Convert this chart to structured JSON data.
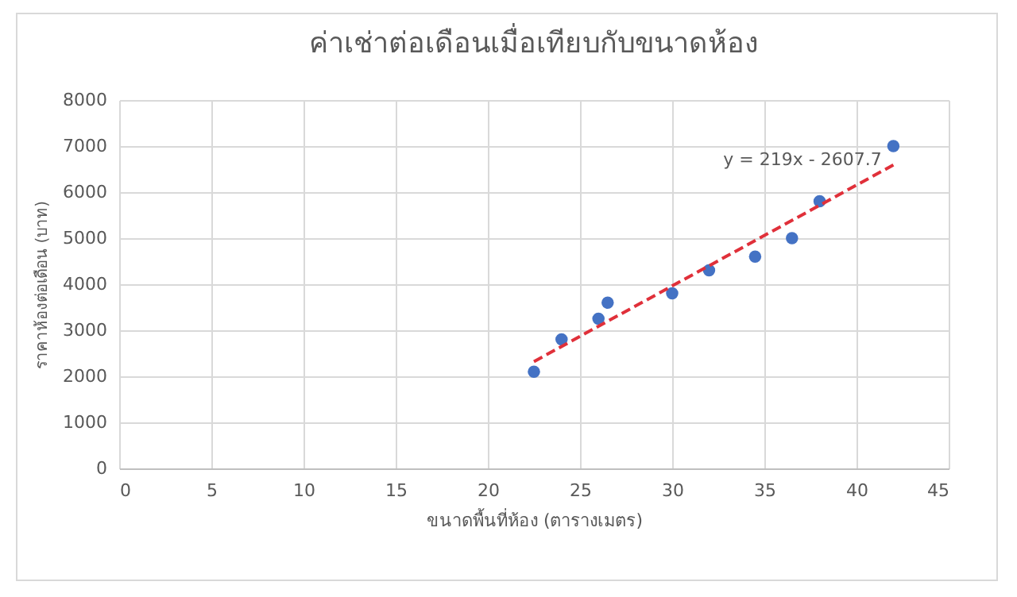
{
  "chart_data": {
    "type": "scatter",
    "title": "ค่าเช่าต่อเดือนเมื่อเทียบกับขนาดห้อง",
    "xlabel": "ขนาดพื้นที่ห้อง (ตารางเมตร)",
    "ylabel": "ราคาห้องต่อเดือน (บาท)",
    "x": [
      22.5,
      24,
      26,
      26.5,
      30,
      32,
      34.5,
      36.5,
      38,
      42
    ],
    "series": [
      {
        "color": "#4472c4",
        "marker": "circle",
        "values": [
          2100,
          2800,
          3250,
          3600,
          3800,
          4300,
          4600,
          5000,
          5800,
          7000
        ]
      },
      {
        "type": "line",
        "color": "#e0303a",
        "x": [
          22.5,
          42
        ],
        "values": [
          2320,
          6590
        ],
        "line_style": "dashed"
      }
    ],
    "annotations": [
      "y = 219x - 2607.7"
    ],
    "xlim": [
      0,
      45
    ],
    "xticks": [
      0,
      5,
      10,
      15,
      20,
      25,
      30,
      35,
      40,
      45
    ],
    "ylim": [
      0,
      8000
    ],
    "yticks": [
      0,
      1000,
      2000,
      3000,
      4000,
      5000,
      6000,
      7000,
      8000
    ],
    "grid": true
  }
}
